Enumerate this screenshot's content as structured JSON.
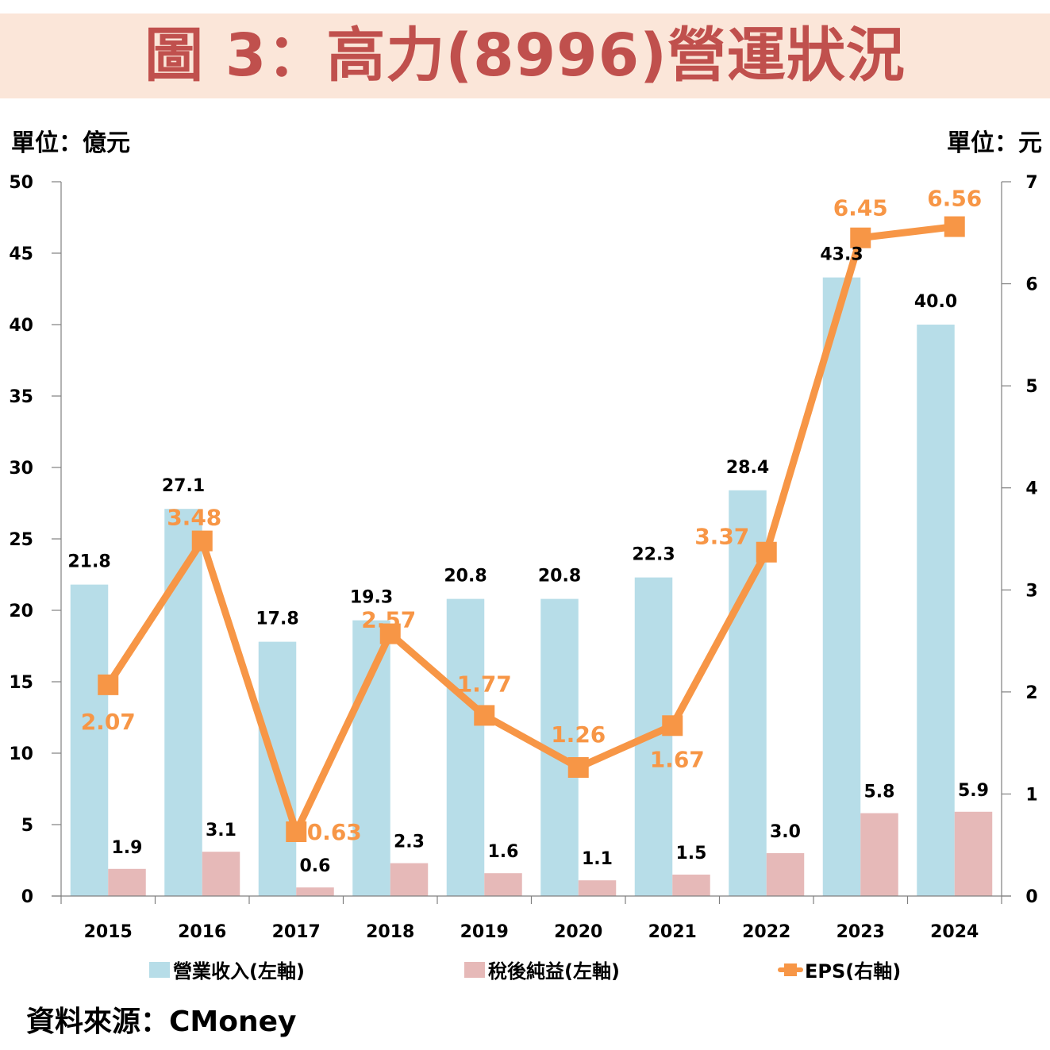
{
  "title": "圖 3：高力(8996)營運狀況",
  "unit_left": "單位：億元",
  "unit_right": "單位：元",
  "source": "資料來源：CMoney",
  "colors": {
    "title_bg": "#fbe6d9",
    "title_text": "#c0504d",
    "revenue": "#b7dde8",
    "net_income": "#e6b9b8",
    "eps": "#f79646",
    "axis": "#808080"
  },
  "chart_data": {
    "type": "bar+line",
    "title": "圖 3：高力(8996)營運狀況",
    "categories": [
      "2015",
      "2016",
      "2017",
      "2018",
      "2019",
      "2020",
      "2021",
      "2022",
      "2023",
      "2024"
    ],
    "series": [
      {
        "name": "營業收入(左軸)",
        "type": "bar",
        "axis": "left",
        "values": [
          21.8,
          27.1,
          17.8,
          19.3,
          20.8,
          20.8,
          22.3,
          28.4,
          43.3,
          40.0
        ],
        "labels": [
          "21.8",
          "27.1",
          "17.8",
          "19.3",
          "20.8",
          "20.8",
          "22.3",
          "28.4",
          "43.3",
          "40.0"
        ]
      },
      {
        "name": "稅後純益(左軸)",
        "type": "bar",
        "axis": "left",
        "values": [
          1.9,
          3.1,
          0.6,
          2.3,
          1.6,
          1.1,
          1.5,
          3.0,
          5.8,
          5.9
        ],
        "labels": [
          "1.9",
          "3.1",
          "0.6",
          "2.3",
          "1.6",
          "1.1",
          "1.5",
          "3.0",
          "5.8",
          "5.9"
        ]
      },
      {
        "name": "EPS(右軸)",
        "type": "line",
        "axis": "right",
        "values": [
          2.07,
          3.48,
          0.63,
          2.57,
          1.77,
          1.26,
          1.67,
          3.37,
          6.45,
          6.56
        ],
        "labels": [
          "2.07",
          "3.48",
          "0.63",
          "2.57",
          "1.77",
          "1.26",
          "1.67",
          "3.37",
          "6.45",
          "6.56"
        ]
      }
    ],
    "y_left": {
      "label": "單位：億元",
      "range": [
        0,
        50
      ],
      "ticks": [
        "0",
        "5",
        "10",
        "15",
        "20",
        "25",
        "30",
        "35",
        "40",
        "45",
        "50"
      ]
    },
    "y_right": {
      "label": "單位：元",
      "range": [
        0,
        7
      ],
      "ticks": [
        "0",
        "1",
        "2",
        "3",
        "4",
        "5",
        "6",
        "7"
      ]
    },
    "grid": false,
    "legend": {
      "position": "bottom",
      "entries": [
        "營業收入(左軸)",
        "稅後純益(左軸)",
        "EPS(右軸)"
      ]
    }
  }
}
